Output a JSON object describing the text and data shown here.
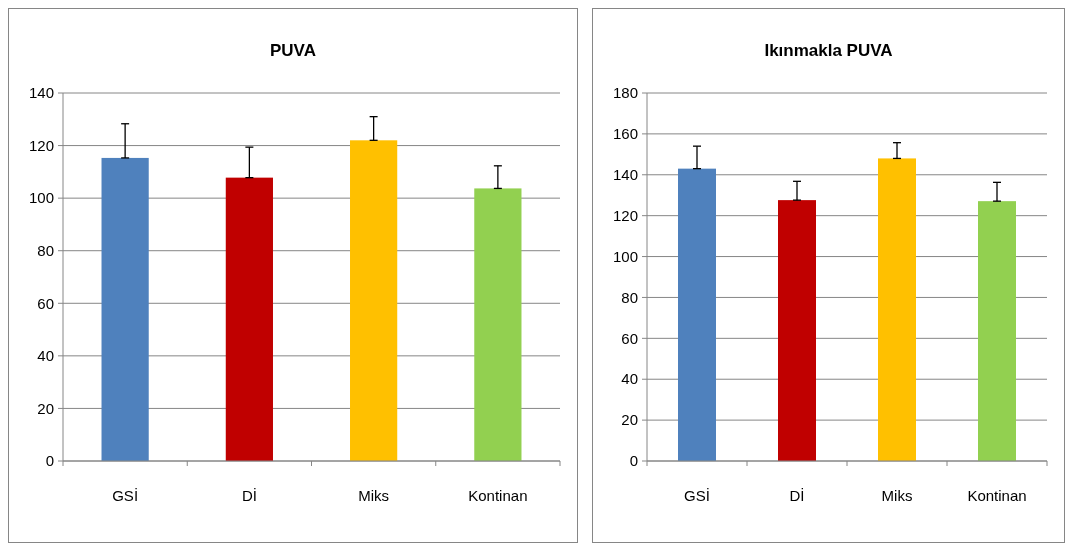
{
  "chart_data": [
    {
      "type": "bar",
      "title": "PUVA",
      "categories": [
        "GSİ",
        "Dİ",
        "Miks",
        "Kontinan"
      ],
      "values": [
        115.3,
        107.8,
        122,
        103.7
      ],
      "colors": [
        "#4f81bd",
        "#c00000",
        "#ffc000",
        "#92d050"
      ],
      "errors": [
        [
          115.3,
          128.3
        ],
        [
          107.8,
          119.4
        ],
        [
          122,
          131
        ],
        [
          103.7,
          112.3
        ]
      ],
      "ylim": [
        0,
        140
      ],
      "yticks": [
        0,
        20,
        40,
        60,
        80,
        100,
        120,
        140
      ],
      "grid": "y",
      "legend": false
    },
    {
      "type": "bar",
      "title": "Ikınmakla PUVA",
      "categories": [
        "GSİ",
        "Dİ",
        "Miks",
        "Kontinan"
      ],
      "values": [
        143,
        127.6,
        148,
        127.1
      ],
      "colors": [
        "#4f81bd",
        "#c00000",
        "#ffc000",
        "#92d050"
      ],
      "errors": [
        [
          143,
          154
        ],
        [
          127.6,
          136.8
        ],
        [
          148,
          155.7
        ],
        [
          127.1,
          136.3
        ]
      ],
      "ylim": [
        0,
        180
      ],
      "yticks": [
        0,
        20,
        40,
        60,
        80,
        100,
        120,
        140,
        160,
        180
      ],
      "grid": "y",
      "legend": false
    }
  ]
}
